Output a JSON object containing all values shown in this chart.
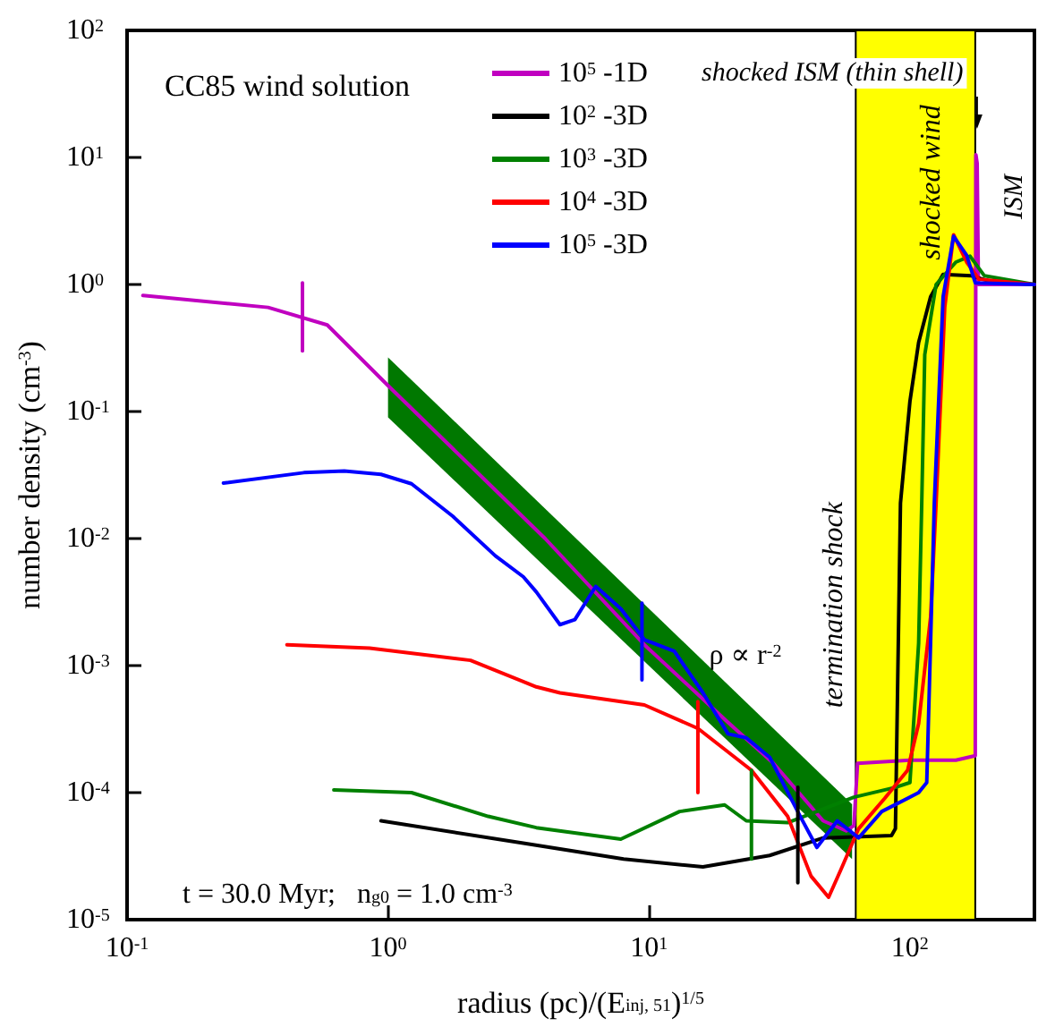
{
  "chart_data": {
    "type": "line",
    "xlabel": "radius (pc)/(E$_{inj, 51}$)$^{1/5}$",
    "ylabel": "number density (cm$^{-3}$)",
    "log": "xy",
    "grid": false,
    "legend": "top",
    "marker": "none",
    "line_style": "solid",
    "xlim": [
      0.1,
      300
    ],
    "ylim": [
      1e-05,
      100
    ],
    "xticks": [
      {
        "value": 0.1,
        "label": "10$^{-1}$"
      },
      {
        "value": 1,
        "label": "10$^{0}$"
      },
      {
        "value": 10,
        "label": "10$^{1}$"
      },
      {
        "value": 100,
        "label": "10$^{2}$"
      }
    ],
    "yticks": [
      {
        "value": 1e-05,
        "label": "10$^{-5}$"
      },
      {
        "value": 0.0001,
        "label": "10$^{-4}$"
      },
      {
        "value": 0.001,
        "label": "10$^{-3}$"
      },
      {
        "value": 0.01,
        "label": "10$^{-2}$"
      },
      {
        "value": 0.1,
        "label": "10$^{-1}$"
      },
      {
        "value": 1,
        "label": "10$^{0}$"
      },
      {
        "value": 10,
        "label": "10$^{1}$"
      },
      {
        "value": 100,
        "label": "10$^{2}$"
      }
    ],
    "bands": [
      {
        "axis": "x",
        "from": 62,
        "to": 178,
        "label": "shocked wind",
        "color": "#ffff00"
      }
    ],
    "annotations": [
      "CC85 wind solution",
      "t = 30.0 Myr;   n$_{g0}$ = 1.0 cm$^{-3}$",
      {
        "text": "ρ ∝ r$^{-2}$",
        "x": 17,
        "y": 0.0012
      },
      {
        "text": "termination shock",
        "x": 62,
        "y": 0.003
      },
      "ISM",
      "shocked ISM (thin shell)"
    ],
    "series": [
      {
        "color": "#007800",
        "x": [
          1,
          60
        ],
        "values": [
          null,
          null
        ],
        "lower": [
          0.09,
          3e-05
        ],
        "upper": [
          0.267,
          8.1e-05
        ]
      },
      {
        "name": "10$^{5}$ -1D",
        "color": "#c000c0",
        "x": [
          0.115,
          0.347,
          0.585,
          1,
          2,
          4,
          9.6,
          20,
          30,
          46.5,
          57,
          61,
          63,
          100,
          150,
          178,
          179,
          181,
          183,
          300
        ],
        "values": [
          0.82,
          0.66,
          0.48,
          0.16,
          0.04,
          0.01,
          0.00146,
          0.00036,
          0.00017,
          6e-05,
          5e-05,
          5.5e-05,
          0.00017,
          0.00018,
          0.00018,
          0.000195,
          10.5,
          9,
          1.0,
          1.0
        ]
      },
      {
        "name": "10$^{2}$ -3D",
        "color": "#000000",
        "x": [
          0.94,
          3.3,
          8,
          16.1,
          29,
          46.5,
          85,
          88,
          92,
          100,
          108,
          120,
          134,
          172,
          203,
          300
        ],
        "values": [
          6e-05,
          4e-05,
          3e-05,
          2.6e-05,
          3.2e-05,
          4.4e-05,
          4.6e-05,
          5.2e-05,
          0.019,
          0.12,
          0.35,
          0.8,
          1.2,
          1.17,
          1.06,
          1.0
        ]
      },
      {
        "name": "10$^{3}$ -3D",
        "color": "#008000",
        "x": [
          0.62,
          1.23,
          2.42,
          3.7,
          7.8,
          13.1,
          19.5,
          23.6,
          34,
          61,
          88,
          100,
          108,
          111,
          114,
          126,
          150,
          170,
          193,
          300
        ],
        "values": [
          0.000105,
          0.0001,
          6.5e-05,
          5.3e-05,
          4.3e-05,
          7.1e-05,
          8e-05,
          6e-05,
          5.8e-05,
          9.2e-05,
          0.00011,
          0.00012,
          0.0015,
          0.019,
          0.28,
          1.0,
          1.5,
          1.67,
          1.17,
          1.0
        ]
      },
      {
        "name": "10$^{4}$ -3D",
        "color": "#ff0000",
        "x": [
          0.41,
          0.85,
          2.07,
          3.7,
          4.56,
          9.6,
          15.4,
          24.7,
          34,
          41.8,
          48.8,
          54.5,
          63.6,
          80,
          98,
          108,
          120,
          126,
          136,
          147,
          165,
          184,
          300
        ],
        "values": [
          0.00146,
          0.00137,
          0.0011,
          0.00068,
          0.00061,
          0.00049,
          0.00032,
          0.00015,
          6.5e-05,
          2.2e-05,
          1.5e-05,
          2.5e-05,
          5.2e-05,
          9e-05,
          0.00015,
          0.00035,
          0.0024,
          0.019,
          0.66,
          2.46,
          1.5,
          1.1,
          1.0
        ]
      },
      {
        "name": "10$^{5}$ -3D",
        "color": "#0000ff",
        "x": [
          0.234,
          0.476,
          0.68,
          0.94,
          1.23,
          1.77,
          2.58,
          3.3,
          3.7,
          4.56,
          5.2,
          6.25,
          7.8,
          9.6,
          12.5,
          16.1,
          20.1,
          23.6,
          29,
          38,
          44,
          52.7,
          63.6,
          78,
          108,
          116,
          120,
          124,
          134,
          147,
          165,
          178,
          300
        ],
        "values": [
          0.0273,
          0.033,
          0.034,
          0.032,
          0.027,
          0.015,
          0.0073,
          0.005,
          0.0038,
          0.0021,
          0.0023,
          0.0042,
          0.0028,
          0.0016,
          0.0013,
          0.00061,
          0.00029,
          0.00027,
          0.00019,
          6.5e-05,
          3.7e-05,
          6e-05,
          4.4e-05,
          7.1e-05,
          0.0001,
          0.00012,
          0.0015,
          0.019,
          0.8,
          2.4,
          1.7,
          1.03,
          1.0
        ]
      },
      {
        "color": "#c000c0",
        "x": [
          0.47,
          0.47
        ],
        "values": [
          1.03,
          0.3
        ]
      },
      {
        "color": "#0000ff",
        "x": [
          9.4,
          9.4
        ],
        "values": [
          0.0031,
          0.00077
        ]
      },
      {
        "color": "#ff0000",
        "x": [
          15.4,
          15.4
        ],
        "values": [
          0.00052,
          0.0001
        ]
      },
      {
        "color": "#008000",
        "x": [
          24.7,
          24.7
        ],
        "values": [
          0.00015,
          3e-05
        ]
      },
      {
        "color": "#000000",
        "x": [
          37.2,
          37.2
        ],
        "values": [
          0.00011,
          1.95e-05
        ]
      }
    ]
  }
}
